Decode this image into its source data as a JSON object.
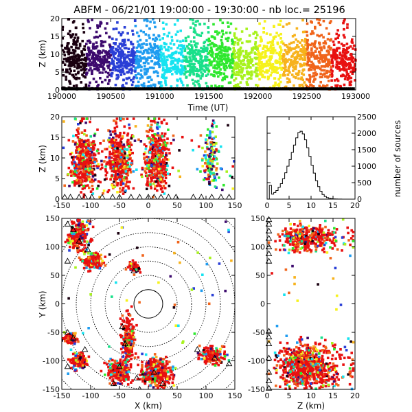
{
  "title": "ABFM - 06/21/01 19:00:00 - 19:30:00 - nb loc.=  25196",
  "colors": {
    "palette": [
      "#1a0010",
      "#3d0a6e",
      "#2a3fd6",
      "#1f9cf0",
      "#16e3f0",
      "#19e08a",
      "#2ee82e",
      "#a8f21e",
      "#f6f21b",
      "#f7b21c",
      "#f0641b",
      "#e81010"
    ],
    "station": "#000000",
    "axis": "#000000"
  },
  "chart_data": [
    {
      "id": "time-height",
      "type": "scatter",
      "xlabel": "Time (UT)",
      "ylabel": "Z (km)",
      "xlim": [
        190000,
        193000
      ],
      "ylim": [
        0,
        20
      ],
      "xticks": [
        190000,
        190500,
        191000,
        191500,
        192000,
        192500,
        193000
      ],
      "yticks": [
        0,
        5,
        10,
        15,
        20
      ],
      "color_by": "time",
      "z_band": [
        0,
        16
      ],
      "z_peak": 8.5
    },
    {
      "id": "xz-projection",
      "type": "scatter",
      "xlabel": "",
      "ylabel": "Z (km)",
      "xlim": [
        -150,
        150
      ],
      "ylim": [
        0,
        20
      ],
      "xticks": [
        -150,
        -100,
        -50,
        0,
        50,
        100,
        150
      ],
      "yticks": [
        0,
        5,
        10,
        15,
        20
      ],
      "color_by": "time",
      "clusters_x": [
        -110,
        -50,
        15,
        110
      ],
      "cluster_widths": [
        22,
        22,
        20,
        14
      ]
    },
    {
      "id": "altitude-histogram",
      "type": "bar",
      "xlabel": "",
      "ylabel": "number of sources",
      "xlim": [
        0,
        20
      ],
      "ylim": [
        0,
        2500
      ],
      "xticks": [
        0,
        5,
        10,
        15,
        20
      ],
      "yticks": [
        0,
        500,
        1000,
        1500,
        2000,
        2500
      ],
      "bin_width": 0.5,
      "values": [
        0,
        420,
        150,
        200,
        260,
        360,
        470,
        620,
        800,
        1000,
        1200,
        1420,
        1640,
        1860,
        2020,
        2060,
        1980,
        1800,
        1560,
        1300,
        1030,
        790,
        560,
        380,
        240,
        140,
        80,
        45,
        25,
        15,
        8,
        5,
        3,
        2,
        1,
        0,
        0,
        0,
        0,
        0
      ]
    },
    {
      "id": "plan-view",
      "type": "scatter",
      "xlabel": "X (km)",
      "ylabel": "Y (km)",
      "xlim": [
        -150,
        150
      ],
      "ylim": [
        -150,
        150
      ],
      "xticks": [
        -150,
        -100,
        -50,
        0,
        50,
        100,
        150
      ],
      "yticks": [
        -150,
        -100,
        -50,
        0,
        50,
        100,
        150
      ],
      "color_by": "time",
      "range_rings_km": [
        25,
        50,
        75,
        100,
        125,
        150,
        175,
        200
      ]
    },
    {
      "id": "zy-projection",
      "type": "scatter",
      "xlabel": "Z (km)",
      "ylabel": "",
      "xlim": [
        0,
        20
      ],
      "ylim": [
        -150,
        150
      ],
      "xticks": [
        0,
        5,
        10,
        15,
        20
      ],
      "yticks": [
        -150,
        -100,
        -50,
        0,
        50,
        100,
        150
      ],
      "color_by": "time"
    }
  ]
}
